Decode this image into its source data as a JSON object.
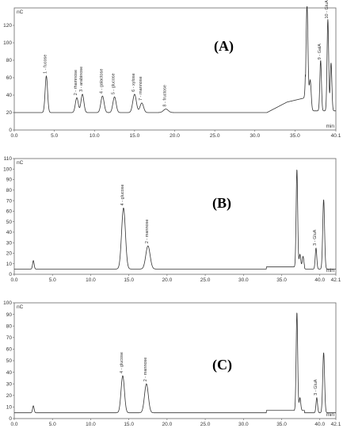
{
  "chart_data": [
    {
      "type": "line",
      "panel": "(A)",
      "unit": "nC",
      "xunit": "min",
      "xlim": [
        0,
        40.1
      ],
      "ylim": [
        0,
        140
      ],
      "xticks": [
        "0.0",
        "5.0",
        "10.0",
        "15.0",
        "20.0",
        "25.0",
        "30.0",
        "35.0",
        "40.1"
      ],
      "yticks": [
        "0",
        "20",
        "40",
        "60",
        "80",
        "100",
        "120"
      ],
      "baseline": 20,
      "peaks": [
        {
          "t": 4.0,
          "h": 62,
          "w": 0.15,
          "label": "1 - fucose"
        },
        {
          "t": 7.8,
          "h": 37,
          "w": 0.18,
          "label": "2 - rhamnose"
        },
        {
          "t": 8.5,
          "h": 41,
          "w": 0.18,
          "label": "3 - arabinose"
        },
        {
          "t": 11.0,
          "h": 39,
          "w": 0.2,
          "label": "4 - galactose"
        },
        {
          "t": 12.5,
          "h": 38,
          "w": 0.2,
          "label": "5 - glucose"
        },
        {
          "t": 15.0,
          "h": 41,
          "w": 0.22,
          "label": "6 - xylose"
        },
        {
          "t": 15.9,
          "h": 31,
          "w": 0.22,
          "label": "7 - mannose"
        },
        {
          "t": 18.9,
          "h": 24,
          "w": 0.3,
          "label": "8 - fructose"
        },
        {
          "t": 36.5,
          "h": 142,
          "w": 0.12,
          "label": ""
        },
        {
          "t": 36.9,
          "h": 55,
          "w": 0.12,
          "label": ""
        },
        {
          "t": 38.2,
          "h": 78,
          "w": 0.1,
          "label": "9 - GalA"
        },
        {
          "t": 39.1,
          "h": 125,
          "w": 0.1,
          "label": "10 - GluA"
        },
        {
          "t": 39.5,
          "h": 75,
          "w": 0.1,
          "label": ""
        }
      ]
    },
    {
      "type": "line",
      "panel": "(B)",
      "unit": "nC",
      "xunit": "min",
      "xlim": [
        0,
        42.1
      ],
      "ylim": [
        0,
        110
      ],
      "xticks": [
        "0.0",
        "5.0",
        "10.0",
        "15.0",
        "20.0",
        "25.0",
        "30.0",
        "35.0",
        "40.0",
        "42.1"
      ],
      "yticks": [
        "0",
        "10",
        "20",
        "30",
        "40",
        "50",
        "60",
        "70",
        "80",
        "90",
        "100",
        "110"
      ],
      "baseline": 5,
      "peaks": [
        {
          "t": 2.5,
          "h": 13,
          "w": 0.1,
          "label": ""
        },
        {
          "t": 14.3,
          "h": 63,
          "w": 0.25,
          "label": "4 - glucose"
        },
        {
          "t": 17.5,
          "h": 27,
          "w": 0.28,
          "label": "2 - mannose"
        },
        {
          "t": 37.0,
          "h": 98,
          "w": 0.1,
          "label": ""
        },
        {
          "t": 37.4,
          "h": 17,
          "w": 0.1,
          "label": ""
        },
        {
          "t": 37.8,
          "h": 15,
          "w": 0.1,
          "label": ""
        },
        {
          "t": 39.5,
          "h": 25,
          "w": 0.1,
          "label": "3 - GluA"
        },
        {
          "t": 40.5,
          "h": 71,
          "w": 0.12,
          "label": ""
        }
      ]
    },
    {
      "type": "line",
      "panel": "(C)",
      "unit": "nC",
      "xunit": "min",
      "xlim": [
        0,
        42.1
      ],
      "ylim": [
        0,
        100
      ],
      "xticks": [
        "0.0",
        "5.0",
        "10.0",
        "15.0",
        "20.0",
        "25.0",
        "30.0",
        "35.0",
        "40.0",
        "42.1"
      ],
      "yticks": [
        "0",
        "10",
        "20",
        "30",
        "40",
        "50",
        "60",
        "70",
        "80",
        "90",
        "100"
      ],
      "baseline": 5,
      "peaks": [
        {
          "t": 2.5,
          "h": 11,
          "w": 0.1,
          "label": ""
        },
        {
          "t": 14.2,
          "h": 37,
          "w": 0.22,
          "label": "4 - glucose"
        },
        {
          "t": 17.3,
          "h": 30,
          "w": 0.25,
          "label": "2 - mannose"
        },
        {
          "t": 37.0,
          "h": 90,
          "w": 0.1,
          "label": ""
        },
        {
          "t": 37.4,
          "h": 16,
          "w": 0.1,
          "label": ""
        },
        {
          "t": 39.6,
          "h": 18,
          "w": 0.1,
          "label": "3 - GluA"
        },
        {
          "t": 40.5,
          "h": 57,
          "w": 0.12,
          "label": ""
        }
      ]
    }
  ]
}
